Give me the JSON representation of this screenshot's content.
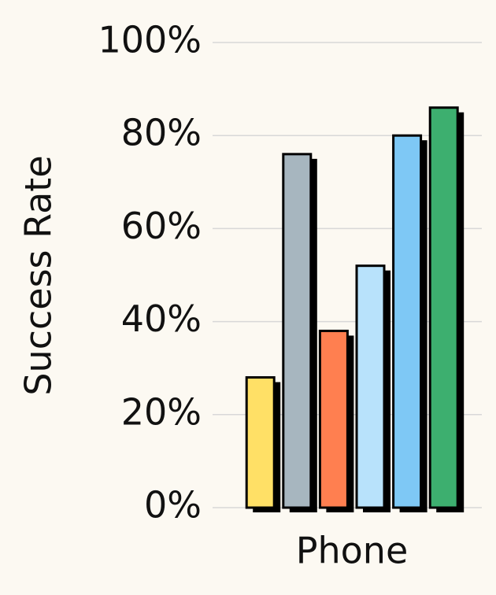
{
  "chart_data": {
    "type": "bar",
    "ylabel": "Success Rate",
    "categories": [
      "Phone"
    ],
    "series": [
      {
        "color": "#ffe066",
        "values": [
          28
        ]
      },
      {
        "color": "#a7b6bf",
        "values": [
          76
        ]
      },
      {
        "color": "#ff7f50",
        "values": [
          38
        ]
      },
      {
        "color": "#b8e2fb",
        "values": [
          52
        ]
      },
      {
        "color": "#7ec8f5",
        "values": [
          80
        ]
      },
      {
        "color": "#3daf6f",
        "values": [
          86
        ]
      }
    ],
    "ylim": [
      0,
      100
    ],
    "yticks": [
      {
        "value": 0,
        "label": "0%"
      },
      {
        "value": 20,
        "label": "20%"
      },
      {
        "value": 40,
        "label": "40%"
      },
      {
        "value": 60,
        "label": "60%"
      },
      {
        "value": 80,
        "label": "80%"
      },
      {
        "value": 100,
        "label": "100%"
      }
    ],
    "grid": true
  }
}
